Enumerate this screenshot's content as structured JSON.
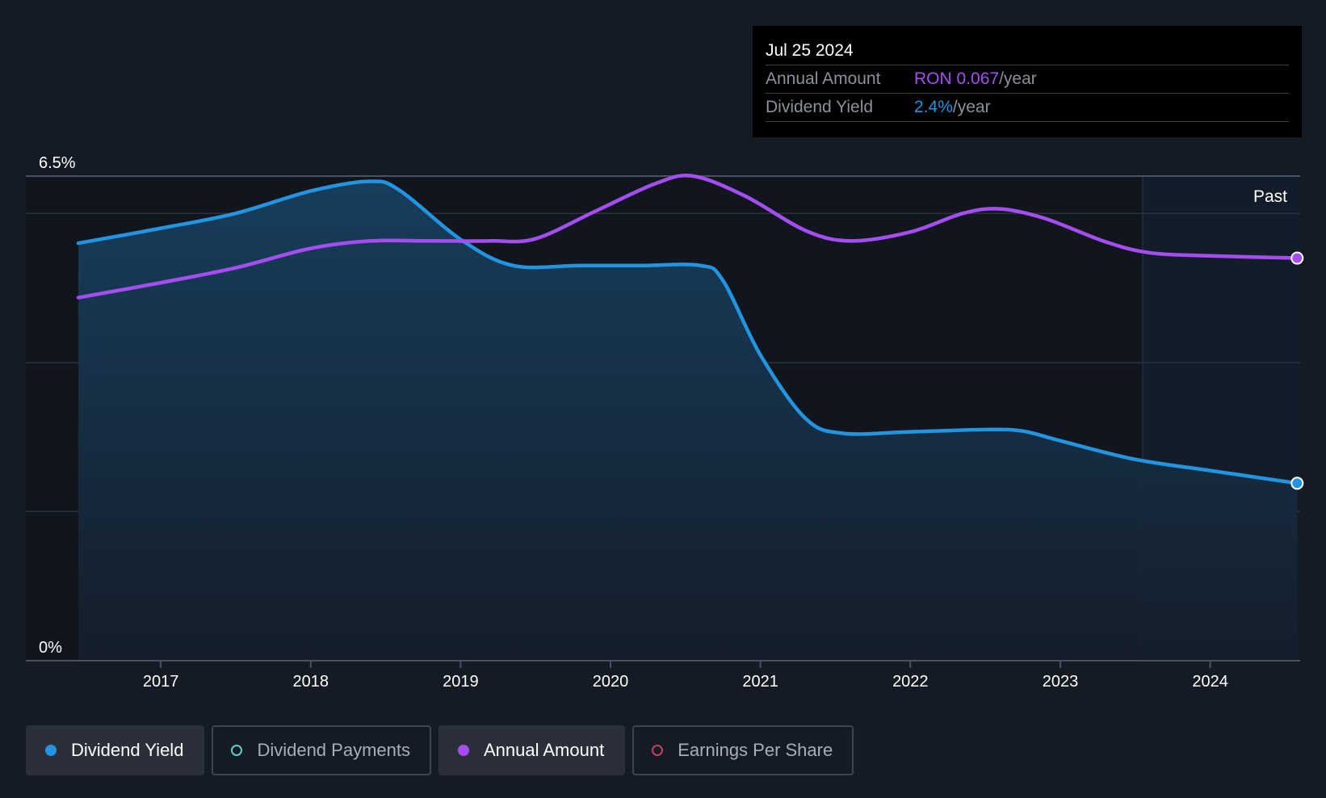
{
  "tooltip": {
    "date": "Jul 25 2024",
    "rows": [
      {
        "label": "Annual Amount",
        "value": "RON 0.067",
        "unit": "/year",
        "color": "#a54ef0"
      },
      {
        "label": "Dividend Yield",
        "value": "2.4%",
        "unit": "/year",
        "color": "#2394df"
      }
    ]
  },
  "legend": [
    {
      "label": "Dividend Yield",
      "active": true,
      "marker": "filled",
      "color": "#2394df"
    },
    {
      "label": "Dividend Payments",
      "active": false,
      "marker": "outline",
      "color": "#5ecfc2"
    },
    {
      "label": "Annual Amount",
      "active": true,
      "marker": "filled",
      "color": "#a54ef0"
    },
    {
      "label": "Earnings Per Share",
      "active": false,
      "marker": "outline",
      "color": "#c0406e"
    }
  ],
  "chart_data": {
    "type": "line",
    "y_ticks": [
      "6.5%",
      "0%"
    ],
    "ylim": [
      0,
      6.5
    ],
    "xlim": [
      2016.1,
      2024.6
    ],
    "x_ticks": [
      "2017",
      "2018",
      "2019",
      "2020",
      "2021",
      "2022",
      "2023",
      "2024"
    ],
    "past_label": "Past",
    "past_start": 2023.55,
    "series": [
      {
        "name": "Dividend Yield",
        "color": "#2394df",
        "area": true,
        "points": [
          [
            2016.45,
            5.6
          ],
          [
            2017.0,
            5.8
          ],
          [
            2017.5,
            6.0
          ],
          [
            2018.0,
            6.3
          ],
          [
            2018.4,
            6.43
          ],
          [
            2018.6,
            6.3
          ],
          [
            2019.0,
            5.65
          ],
          [
            2019.35,
            5.3
          ],
          [
            2019.8,
            5.3
          ],
          [
            2020.2,
            5.3
          ],
          [
            2020.6,
            5.3
          ],
          [
            2020.75,
            5.1
          ],
          [
            2021.0,
            4.1
          ],
          [
            2021.3,
            3.25
          ],
          [
            2021.55,
            3.05
          ],
          [
            2022.0,
            3.07
          ],
          [
            2022.5,
            3.1
          ],
          [
            2022.75,
            3.08
          ],
          [
            2023.0,
            2.95
          ],
          [
            2023.5,
            2.7
          ],
          [
            2024.0,
            2.55
          ],
          [
            2024.58,
            2.38
          ]
        ]
      },
      {
        "name": "Annual Amount",
        "color": "#a54ef0",
        "area": false,
        "points": [
          [
            2016.45,
            4.87
          ],
          [
            2017.0,
            5.07
          ],
          [
            2017.5,
            5.27
          ],
          [
            2018.0,
            5.53
          ],
          [
            2018.4,
            5.63
          ],
          [
            2018.8,
            5.63
          ],
          [
            2019.2,
            5.63
          ],
          [
            2019.5,
            5.66
          ],
          [
            2019.9,
            6.03
          ],
          [
            2020.3,
            6.4
          ],
          [
            2020.55,
            6.5
          ],
          [
            2020.9,
            6.23
          ],
          [
            2021.3,
            5.77
          ],
          [
            2021.6,
            5.63
          ],
          [
            2022.0,
            5.75
          ],
          [
            2022.35,
            6.0
          ],
          [
            2022.6,
            6.06
          ],
          [
            2022.9,
            5.93
          ],
          [
            2023.3,
            5.62
          ],
          [
            2023.6,
            5.47
          ],
          [
            2024.0,
            5.43
          ],
          [
            2024.58,
            5.4
          ]
        ]
      }
    ]
  }
}
